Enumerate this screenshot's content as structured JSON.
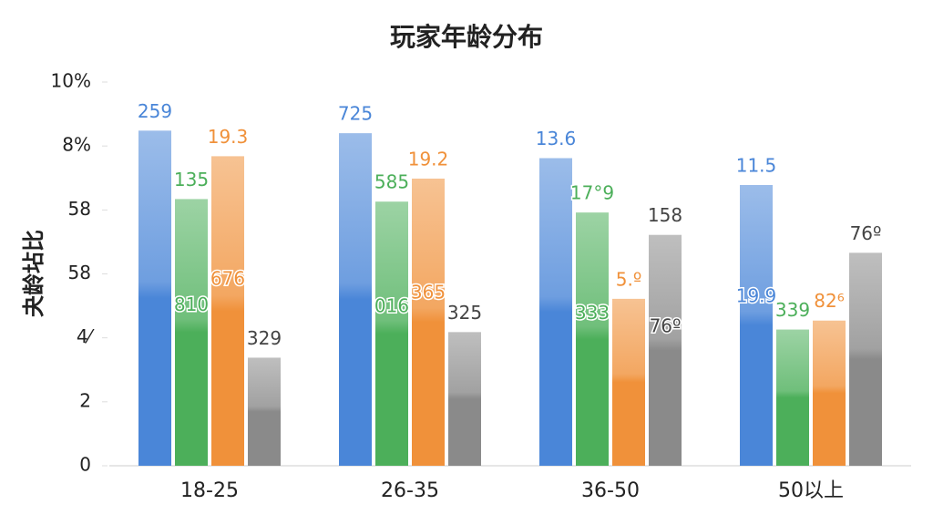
{
  "chart_data": {
    "type": "bar",
    "title": "玩家年龄分布",
    "ylabel": "夬龄坫比",
    "categories": [
      "18-25",
      "26-35",
      "36-50",
      "50以上"
    ],
    "series": [
      {
        "name": "blue",
        "color": "#4a86d8",
        "values": [
          5.24,
          5.2,
          4.81,
          4.39
        ]
      },
      {
        "name": "green",
        "color": "#4caf5a",
        "values": [
          4.17,
          4.13,
          3.96,
          2.13
        ]
      },
      {
        "name": "orange",
        "color": "#f0913a",
        "values": [
          4.84,
          4.49,
          2.61,
          2.27
        ]
      },
      {
        "name": "gray",
        "color": "#8a8a8a",
        "values": [
          1.69,
          2.09,
          3.61,
          3.33
        ]
      }
    ],
    "annotations": [
      [
        [
          "259"
        ],
        [
          "135",
          "810"
        ],
        [
          "19.3",
          "676"
        ],
        [
          "329"
        ]
      ],
      [
        [
          "725"
        ],
        [
          "585",
          "016"
        ],
        [
          "19.2",
          "365"
        ],
        [
          "325"
        ]
      ],
      [
        [
          "13.6"
        ],
        [
          "17°9",
          "333"
        ],
        [
          "5.º"
        ],
        [
          "158",
          "76º"
        ]
      ],
      [
        [
          "11.5",
          "19.9"
        ],
        [
          "339"
        ],
        [
          "82⁶"
        ],
        [
          "76º"
        ]
      ]
    ],
    "ylim": [
      0,
      6
    ],
    "yticks": [
      0,
      {
        "value": 1,
        "label": "2"
      },
      {
        "value": 2,
        "label": "4⁄"
      },
      {
        "value": 3,
        "label": "58"
      },
      {
        "value": 4,
        "label": "58"
      },
      {
        "value": 5,
        "label": "8%"
      },
      {
        "value": 6,
        "label": "10%"
      }
    ]
  }
}
